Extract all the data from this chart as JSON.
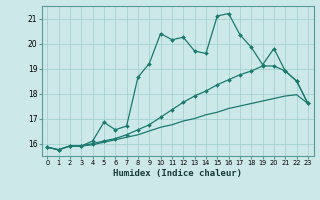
{
  "xlabel": "Humidex (Indice chaleur)",
  "bg_color": "#cce8e8",
  "line_color": "#1a7a6e",
  "ylim": [
    15.5,
    21.5
  ],
  "xlim": [
    -0.5,
    23.5
  ],
  "yticks": [
    16,
    17,
    18,
    19,
    20,
    21
  ],
  "xticks": [
    0,
    1,
    2,
    3,
    4,
    5,
    6,
    7,
    8,
    9,
    10,
    11,
    12,
    13,
    14,
    15,
    16,
    17,
    18,
    19,
    20,
    21,
    22,
    23
  ],
  "line1_x": [
    0,
    1,
    2,
    3,
    4,
    5,
    6,
    7,
    8,
    9,
    10,
    11,
    12,
    13,
    14,
    15,
    16,
    17,
    18,
    19,
    20,
    21,
    22,
    23
  ],
  "line1_y": [
    15.85,
    15.75,
    15.9,
    15.9,
    15.95,
    16.05,
    16.15,
    16.25,
    16.35,
    16.5,
    16.65,
    16.75,
    16.9,
    17.0,
    17.15,
    17.25,
    17.4,
    17.5,
    17.6,
    17.7,
    17.8,
    17.9,
    17.95,
    17.6
  ],
  "line2_x": [
    0,
    1,
    2,
    3,
    4,
    5,
    6,
    7,
    8,
    9,
    10,
    11,
    12,
    13,
    14,
    15,
    16,
    17,
    18,
    19,
    20,
    21,
    22,
    23
  ],
  "line2_y": [
    15.85,
    15.75,
    15.9,
    15.9,
    16.0,
    16.1,
    16.2,
    16.35,
    16.55,
    16.75,
    17.05,
    17.35,
    17.65,
    17.9,
    18.1,
    18.35,
    18.55,
    18.75,
    18.9,
    19.1,
    19.1,
    18.9,
    18.5,
    17.6
  ],
  "line3_x": [
    0,
    1,
    2,
    3,
    4,
    5,
    6,
    7,
    8,
    9,
    10,
    11,
    12,
    13,
    14,
    15,
    16,
    17,
    18,
    19,
    20,
    21,
    22,
    23
  ],
  "line3_y": [
    15.85,
    15.75,
    15.9,
    15.9,
    16.1,
    16.85,
    16.55,
    16.7,
    18.65,
    19.2,
    20.4,
    20.15,
    20.25,
    19.7,
    19.6,
    21.1,
    21.2,
    20.35,
    19.85,
    19.15,
    19.8,
    18.9,
    18.5,
    17.6
  ]
}
